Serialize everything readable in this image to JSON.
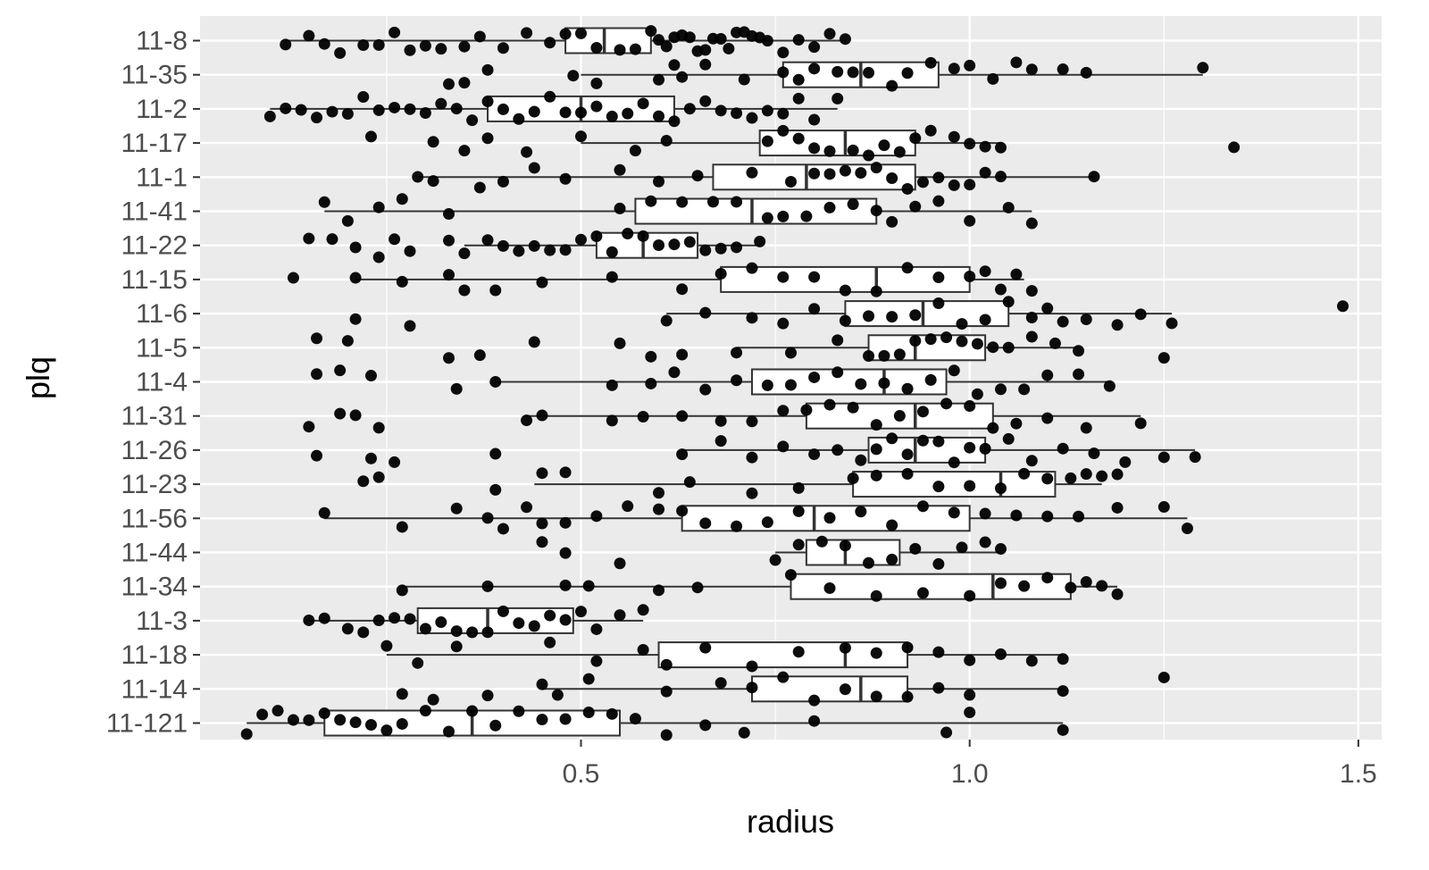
{
  "chart_data": {
    "type": "boxplot",
    "orientation": "horizontal",
    "xlabel": "radius",
    "ylabel": "plq",
    "xlim": [
      0.01,
      1.53
    ],
    "x_ticks": [
      0.5,
      1.0,
      1.5
    ],
    "x_tick_labels": [
      "0.5",
      "1.0",
      "1.5"
    ],
    "grid": true,
    "panel_background": "#ebebeb",
    "grid_color": "#ffffff",
    "point_color": "#000000",
    "box_fill": "#ffffff",
    "box_stroke": "#333333",
    "categories": [
      "11-8",
      "11-35",
      "11-2",
      "11-17",
      "11-1",
      "11-41",
      "11-22",
      "11-15",
      "11-6",
      "11-5",
      "11-4",
      "11-31",
      "11-26",
      "11-23",
      "11-56",
      "11-44",
      "11-34",
      "11-3",
      "11-18",
      "11-14",
      "11-121"
    ],
    "boxes": [
      {
        "group": "11-8",
        "whisker_low": 0.12,
        "q1": 0.48,
        "median": 0.53,
        "q3": 0.59,
        "whisker_high": 0.84
      },
      {
        "group": "11-35",
        "whisker_low": 0.5,
        "q1": 0.76,
        "median": 0.86,
        "q3": 0.96,
        "whisker_high": 1.3
      },
      {
        "group": "11-2",
        "whisker_low": 0.1,
        "q1": 0.38,
        "median": 0.5,
        "q3": 0.62,
        "whisker_high": 0.83
      },
      {
        "group": "11-17",
        "whisker_low": 0.5,
        "q1": 0.73,
        "median": 0.84,
        "q3": 0.93,
        "whisker_high": 1.04
      },
      {
        "group": "11-1",
        "whisker_low": 0.29,
        "q1": 0.67,
        "median": 0.79,
        "q3": 0.93,
        "whisker_high": 1.16
      },
      {
        "group": "11-41",
        "whisker_low": 0.17,
        "q1": 0.57,
        "median": 0.72,
        "q3": 0.88,
        "whisker_high": 1.08
      },
      {
        "group": "11-22",
        "whisker_low": 0.35,
        "q1": 0.52,
        "median": 0.58,
        "q3": 0.65,
        "whisker_high": 0.73
      },
      {
        "group": "11-15",
        "whisker_low": 0.21,
        "q1": 0.68,
        "median": 0.88,
        "q3": 1.0,
        "whisker_high": 1.07
      },
      {
        "group": "11-6",
        "whisker_low": 0.61,
        "q1": 0.84,
        "median": 0.94,
        "q3": 1.05,
        "whisker_high": 1.26
      },
      {
        "group": "11-5",
        "whisker_low": 0.7,
        "q1": 0.87,
        "median": 0.93,
        "q3": 1.02,
        "whisker_high": 1.14
      },
      {
        "group": "11-4",
        "whisker_low": 0.39,
        "q1": 0.72,
        "median": 0.89,
        "q3": 0.97,
        "whisker_high": 1.18
      },
      {
        "group": "11-31",
        "whisker_low": 0.43,
        "q1": 0.79,
        "median": 0.93,
        "q3": 1.03,
        "whisker_high": 1.22
      },
      {
        "group": "11-26",
        "whisker_low": 0.63,
        "q1": 0.87,
        "median": 0.93,
        "q3": 1.02,
        "whisker_high": 1.29
      },
      {
        "group": "11-23",
        "whisker_low": 0.44,
        "q1": 0.85,
        "median": 1.04,
        "q3": 1.11,
        "whisker_high": 1.17
      },
      {
        "group": "11-56",
        "whisker_low": 0.17,
        "q1": 0.63,
        "median": 0.8,
        "q3": 1.0,
        "whisker_high": 1.28
      },
      {
        "group": "11-44",
        "whisker_low": 0.75,
        "q1": 0.79,
        "median": 0.84,
        "q3": 0.91,
        "whisker_high": 1.04
      },
      {
        "group": "11-34",
        "whisker_low": 0.27,
        "q1": 0.77,
        "median": 1.03,
        "q3": 1.13,
        "whisker_high": 1.19
      },
      {
        "group": "11-3",
        "whisker_low": 0.15,
        "q1": 0.29,
        "median": 0.38,
        "q3": 0.49,
        "whisker_high": 0.58
      },
      {
        "group": "11-18",
        "whisker_low": 0.25,
        "q1": 0.6,
        "median": 0.84,
        "q3": 0.92,
        "whisker_high": 1.12
      },
      {
        "group": "11-14",
        "whisker_low": 0.45,
        "q1": 0.72,
        "median": 0.86,
        "q3": 0.92,
        "whisker_high": 1.12
      },
      {
        "group": "11-121",
        "whisker_low": 0.07,
        "q1": 0.17,
        "median": 0.36,
        "q3": 0.55,
        "whisker_high": 1.12
      }
    ],
    "points": {
      "11-8": [
        0.12,
        0.15,
        0.17,
        0.19,
        0.22,
        0.24,
        0.26,
        0.28,
        0.3,
        0.32,
        0.35,
        0.37,
        0.4,
        0.43,
        0.46,
        0.48,
        0.5,
        0.52,
        0.55,
        0.57,
        0.59,
        0.6,
        0.61,
        0.62,
        0.63,
        0.64,
        0.65,
        0.66,
        0.67,
        0.68,
        0.69,
        0.7,
        0.71,
        0.72,
        0.73,
        0.74,
        0.76,
        0.78,
        0.8,
        0.82,
        0.84
      ],
      "11-35": [
        0.33,
        0.35,
        0.38,
        0.49,
        0.52,
        0.6,
        0.62,
        0.63,
        0.66,
        0.71,
        0.76,
        0.78,
        0.8,
        0.83,
        0.85,
        0.87,
        0.9,
        0.92,
        0.95,
        0.98,
        1.0,
        1.03,
        1.06,
        1.08,
        1.12,
        1.15,
        1.3
      ],
      "11-2": [
        0.1,
        0.12,
        0.14,
        0.16,
        0.18,
        0.2,
        0.22,
        0.24,
        0.26,
        0.28,
        0.3,
        0.32,
        0.34,
        0.36,
        0.38,
        0.4,
        0.42,
        0.44,
        0.46,
        0.48,
        0.5,
        0.52,
        0.54,
        0.56,
        0.58,
        0.6,
        0.62,
        0.64,
        0.66,
        0.68,
        0.7,
        0.72,
        0.74,
        0.76,
        0.78,
        0.8,
        0.83
      ],
      "11-17": [
        0.23,
        0.31,
        0.35,
        0.38,
        0.43,
        0.5,
        0.57,
        0.61,
        0.74,
        0.76,
        0.78,
        0.8,
        0.82,
        0.85,
        0.87,
        0.89,
        0.91,
        0.93,
        0.95,
        0.98,
        1.0,
        1.02,
        1.04,
        1.34
      ],
      "11-1": [
        0.29,
        0.31,
        0.37,
        0.4,
        0.44,
        0.48,
        0.55,
        0.6,
        0.65,
        0.72,
        0.77,
        0.8,
        0.82,
        0.84,
        0.86,
        0.88,
        0.9,
        0.92,
        0.94,
        0.96,
        0.98,
        1.0,
        1.02,
        1.04,
        1.16
      ],
      "11-41": [
        0.17,
        0.2,
        0.24,
        0.27,
        0.33,
        0.55,
        0.59,
        0.63,
        0.67,
        0.7,
        0.74,
        0.76,
        0.79,
        0.82,
        0.85,
        0.88,
        0.9,
        0.93,
        0.96,
        1.0,
        1.05,
        1.08
      ],
      "11-22": [
        0.15,
        0.18,
        0.21,
        0.24,
        0.26,
        0.28,
        0.33,
        0.35,
        0.38,
        0.4,
        0.42,
        0.44,
        0.46,
        0.48,
        0.5,
        0.52,
        0.54,
        0.56,
        0.58,
        0.6,
        0.62,
        0.64,
        0.66,
        0.68,
        0.7,
        0.73
      ],
      "11-15": [
        0.13,
        0.21,
        0.27,
        0.33,
        0.35,
        0.39,
        0.45,
        0.54,
        0.63,
        0.68,
        0.72,
        0.76,
        0.8,
        0.84,
        0.88,
        0.92,
        0.96,
        1.0,
        1.02,
        1.04,
        1.06,
        1.08
      ],
      "11-6": [
        0.21,
        0.28,
        0.61,
        0.66,
        0.72,
        0.76,
        0.8,
        0.84,
        0.87,
        0.9,
        0.93,
        0.96,
        0.99,
        1.02,
        1.05,
        1.08,
        1.1,
        1.12,
        1.15,
        1.19,
        1.22,
        1.26,
        1.48
      ],
      "11-5": [
        0.16,
        0.2,
        0.33,
        0.37,
        0.44,
        0.55,
        0.59,
        0.63,
        0.7,
        0.77,
        0.83,
        0.87,
        0.89,
        0.91,
        0.93,
        0.95,
        0.97,
        0.99,
        1.01,
        1.03,
        1.05,
        1.08,
        1.11,
        1.14,
        1.25
      ],
      "11-4": [
        0.16,
        0.19,
        0.23,
        0.34,
        0.39,
        0.54,
        0.59,
        0.62,
        0.66,
        0.7,
        0.74,
        0.77,
        0.8,
        0.83,
        0.86,
        0.89,
        0.92,
        0.95,
        0.98,
        1.01,
        1.04,
        1.07,
        1.1,
        1.14,
        1.18
      ],
      "11-31": [
        0.15,
        0.19,
        0.21,
        0.24,
        0.43,
        0.45,
        0.54,
        0.58,
        0.63,
        0.68,
        0.72,
        0.76,
        0.79,
        0.82,
        0.85,
        0.88,
        0.91,
        0.94,
        0.97,
        1.0,
        1.03,
        1.06,
        1.1,
        1.15,
        1.22
      ],
      "11-26": [
        0.16,
        0.23,
        0.26,
        0.39,
        0.63,
        0.68,
        0.72,
        0.76,
        0.8,
        0.83,
        0.86,
        0.88,
        0.9,
        0.92,
        0.94,
        0.96,
        0.98,
        1.0,
        1.02,
        1.05,
        1.08,
        1.12,
        1.16,
        1.2,
        1.25,
        1.29
      ],
      "11-23": [
        0.22,
        0.24,
        0.39,
        0.45,
        0.48,
        0.6,
        0.64,
        0.72,
        0.78,
        0.85,
        0.88,
        0.92,
        0.96,
        1.0,
        1.04,
        1.07,
        1.1,
        1.13,
        1.15,
        1.17,
        1.19
      ],
      "11-56": [
        0.17,
        0.27,
        0.34,
        0.38,
        0.4,
        0.43,
        0.45,
        0.48,
        0.52,
        0.56,
        0.6,
        0.63,
        0.66,
        0.7,
        0.74,
        0.78,
        0.82,
        0.86,
        0.9,
        0.94,
        0.98,
        1.02,
        1.06,
        1.1,
        1.14,
        1.19,
        1.25,
        1.28
      ],
      "11-44": [
        0.45,
        0.48,
        0.55,
        0.75,
        0.78,
        0.81,
        0.84,
        0.87,
        0.9,
        0.93,
        0.96,
        0.99,
        1.02,
        1.04
      ],
      "11-34": [
        0.27,
        0.38,
        0.48,
        0.51,
        0.6,
        0.65,
        0.77,
        0.82,
        0.88,
        0.94,
        1.0,
        1.04,
        1.07,
        1.1,
        1.13,
        1.15,
        1.17,
        1.19
      ],
      "11-3": [
        0.15,
        0.17,
        0.2,
        0.22,
        0.24,
        0.26,
        0.28,
        0.3,
        0.32,
        0.34,
        0.36,
        0.38,
        0.4,
        0.42,
        0.44,
        0.46,
        0.48,
        0.5,
        0.52,
        0.55,
        0.58
      ],
      "11-18": [
        0.25,
        0.29,
        0.34,
        0.46,
        0.52,
        0.58,
        0.61,
        0.66,
        0.72,
        0.78,
        0.84,
        0.88,
        0.92,
        0.96,
        1.0,
        1.04,
        1.08,
        1.12
      ],
      "11-14": [
        0.27,
        0.31,
        0.38,
        0.45,
        0.47,
        0.51,
        0.61,
        0.68,
        0.72,
        0.76,
        0.8,
        0.84,
        0.88,
        0.92,
        0.96,
        1.0,
        1.12,
        1.25
      ],
      "11-121": [
        0.07,
        0.09,
        0.11,
        0.13,
        0.15,
        0.17,
        0.19,
        0.21,
        0.23,
        0.25,
        0.27,
        0.3,
        0.33,
        0.36,
        0.39,
        0.42,
        0.45,
        0.48,
        0.51,
        0.54,
        0.57,
        0.61,
        0.66,
        0.71,
        0.8,
        0.97,
        1.0,
        1.12
      ]
    }
  }
}
